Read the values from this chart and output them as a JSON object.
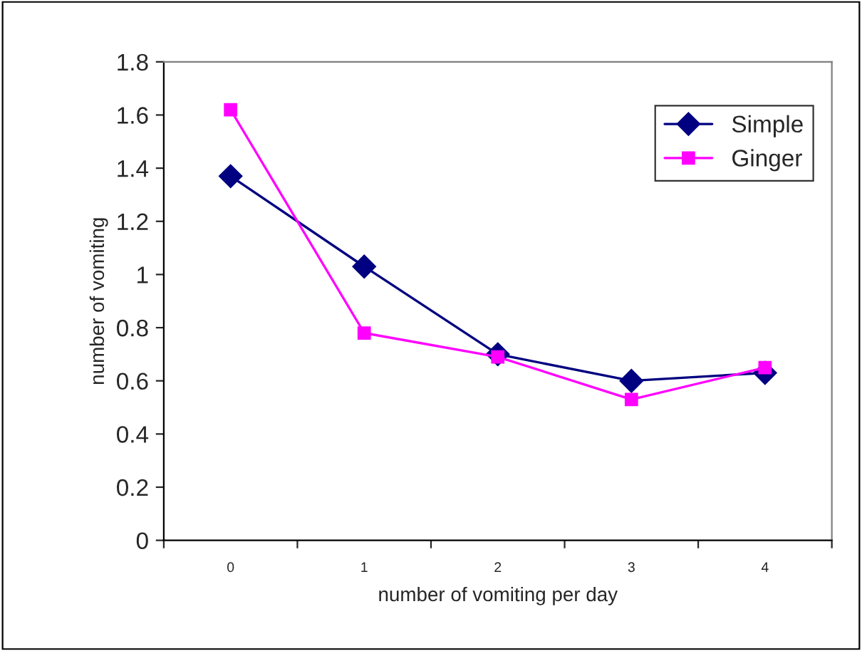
{
  "chart_data": {
    "type": "line",
    "xlabel": "number of vomiting per day",
    "ylabel": "number of vomiting",
    "categories": [
      "0",
      "1",
      "2",
      "3",
      "4"
    ],
    "series": [
      {
        "name": "Simple",
        "color": "#000080",
        "marker": "diamond",
        "values": [
          1.37,
          1.03,
          0.7,
          0.6,
          0.63
        ]
      },
      {
        "name": "Ginger",
        "color": "#ff00ff",
        "marker": "square",
        "values": [
          1.62,
          0.78,
          0.69,
          0.53,
          0.65
        ]
      }
    ],
    "ylim": [
      0,
      1.8
    ],
    "yticks": [
      0,
      0.2,
      0.4,
      0.6,
      0.8,
      1,
      1.2,
      1.4,
      1.6,
      1.8
    ],
    "grid": false,
    "legend": "right"
  }
}
